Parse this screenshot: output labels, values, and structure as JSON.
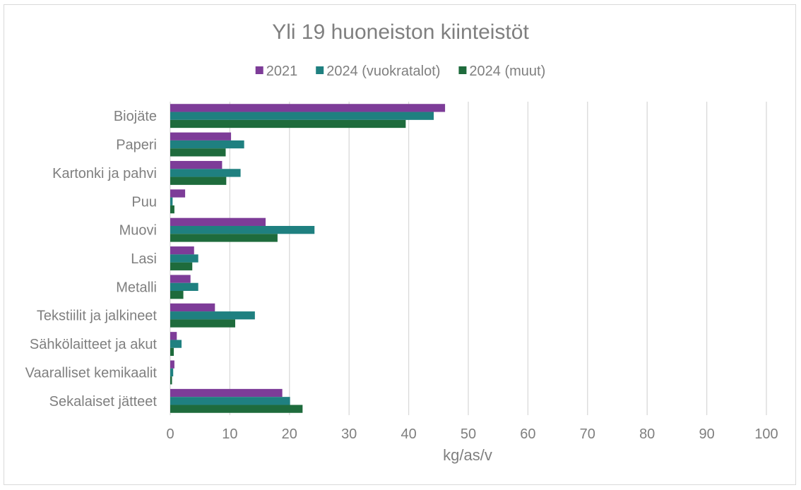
{
  "chart_data": {
    "type": "bar",
    "orientation": "horizontal",
    "title": "Yli 19 huoneiston kiinteistöt",
    "xlabel": "kg/as/v",
    "ylabel": "",
    "xlim": [
      0,
      100
    ],
    "x_ticks": [
      0,
      10,
      20,
      30,
      40,
      50,
      60,
      70,
      80,
      90,
      100
    ],
    "grid": true,
    "legend_position": "top",
    "categories": [
      "Biojäte",
      "Paperi",
      "Kartonki ja pahvi",
      "Puu",
      "Muovi",
      "Lasi",
      "Metalli",
      "Tekstiilit ja jalkineet",
      "Sähkölaitteet ja akut",
      "Vaaralliset kemikaalit",
      "Sekalaiset jätteet"
    ],
    "series": [
      {
        "name": "2021",
        "color": "#7d3c98",
        "values": [
          46.1,
          10.2,
          8.7,
          2.5,
          16.0,
          4.0,
          3.4,
          7.5,
          1.1,
          0.7,
          18.8
        ]
      },
      {
        "name": "2024 (vuokratalot)",
        "color": "#1f8080",
        "values": [
          44.2,
          12.4,
          11.8,
          0.4,
          24.2,
          4.7,
          4.7,
          14.2,
          1.9,
          0.5,
          20.1
        ]
      },
      {
        "name": "2024 (muut)",
        "color": "#1e6b3c",
        "values": [
          39.5,
          9.3,
          9.4,
          0.7,
          18.0,
          3.7,
          2.2,
          10.9,
          0.6,
          0.3,
          22.2
        ]
      }
    ]
  }
}
